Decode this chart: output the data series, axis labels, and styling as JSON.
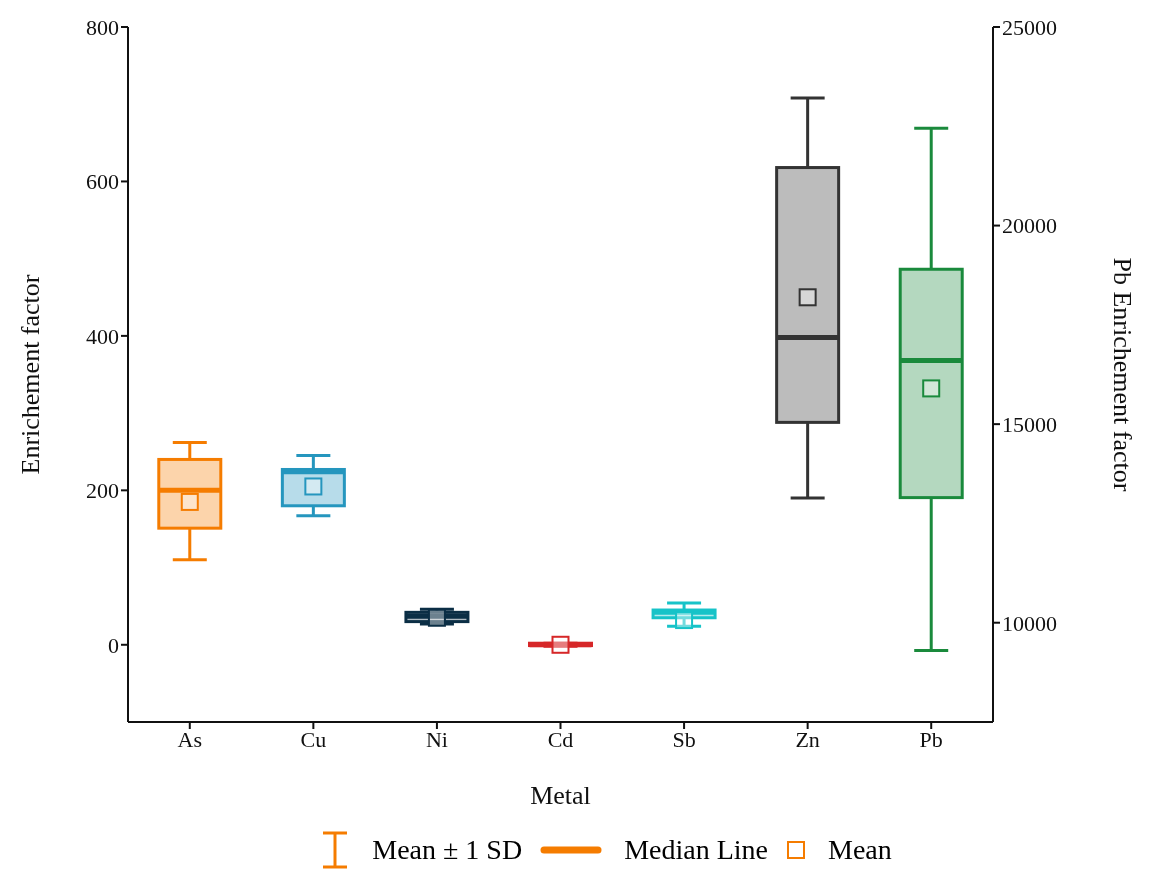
{
  "chart_data": {
    "type": "box",
    "xlabel": "Metal",
    "ylabel": "Enrichement factor",
    "y2label": "Pb Enrichement factor",
    "categories": [
      "As",
      "Cu",
      "Ni",
      "Cd",
      "Sb",
      "Zn",
      "Pb"
    ],
    "ylim": [
      -100,
      800
    ],
    "yticks": [
      0,
      200,
      400,
      600,
      800
    ],
    "y2lim": [
      7500,
      25000
    ],
    "y2ticks": [
      10000,
      15000,
      20000,
      25000
    ],
    "series": [
      {
        "colors": [
          "#f57c00",
          "#2596be",
          "#0b2e45",
          "#d62728",
          "#17c3c8",
          "#333333",
          null
        ],
        "boxes": [
          {
            "low": 110,
            "q1": 151,
            "median": 200,
            "q3": 240,
            "high": 262,
            "mean": 185
          },
          {
            "low": 167,
            "q1": 180,
            "median": 224,
            "q3": 227,
            "high": 245,
            "mean": 205
          },
          {
            "low": 27,
            "q1": 30,
            "median": 37,
            "q3": 42,
            "high": 46,
            "mean": 35
          },
          {
            "low": -2,
            "q1": -1,
            "median": 0,
            "q3": 2,
            "high": 2,
            "mean": 0
          },
          {
            "low": 24,
            "q1": 35,
            "median": 42,
            "q3": 45,
            "high": 54,
            "mean": 32
          },
          {
            "low": 190,
            "q1": 288,
            "median": 398,
            "q3": 618,
            "high": 708,
            "mean": 450
          },
          null
        ]
      },
      {
        "axis": "y2",
        "color": "#1a8a3c",
        "boxes": [
          null,
          null,
          null,
          null,
          null,
          null,
          {
            "low": 9300,
            "q1": 13150,
            "median": 16600,
            "q3": 18900,
            "high": 22450,
            "mean": 15900
          }
        ]
      }
    ],
    "annotations": [
      "Mean ± 1 SD",
      "Median Line",
      "Mean"
    ]
  }
}
